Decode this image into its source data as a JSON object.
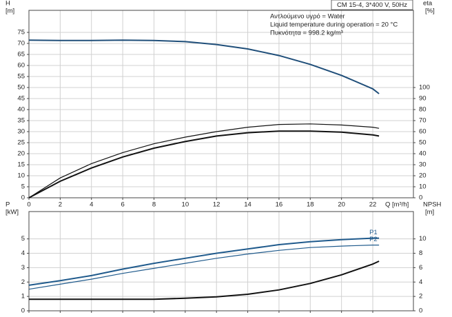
{
  "chart_data": [
    {
      "type": "line",
      "title": "CM 15-4, 3*400 V, 50Hz",
      "annotations": [
        "Αντλούμενο υγρό = Water",
        "Liquid temperature during operation = 20 °C",
        "Πυκνότητα = 998.2 kg/m³"
      ],
      "ylabel": "H",
      "ylabel_unit": "[m]",
      "y2label": "eta",
      "y2label_unit": "[%]",
      "xlabel": "Q [m³/h]",
      "x": [
        0,
        2,
        4,
        6,
        8,
        10,
        12,
        14,
        16,
        18,
        20,
        22,
        22.4
      ],
      "xlim": [
        0,
        24.6
      ],
      "xticks": [
        0,
        2,
        4,
        6,
        8,
        10,
        12,
        14,
        16,
        18,
        20,
        22
      ],
      "show_xtick_labels": true,
      "ylim": [
        0,
        85
      ],
      "yticks": [
        0,
        5,
        10,
        15,
        20,
        25,
        30,
        35,
        40,
        45,
        50,
        55,
        60,
        65,
        70,
        75
      ],
      "y2lim": [
        0,
        170
      ],
      "y2ticks": [
        0,
        10,
        20,
        30,
        40,
        50,
        60,
        70,
        80,
        90,
        100
      ],
      "grid": true,
      "series": [
        {
          "color": "#1f4e79",
          "line_width": 2,
          "values": [
            71.5,
            71.3,
            71.3,
            71.5,
            71.3,
            70.8,
            69.5,
            67.5,
            64.5,
            60.5,
            55.5,
            49.4,
            47.2
          ]
        },
        {
          "color": "#111111",
          "line_width": 1.2,
          "axis": "y2",
          "values": [
            0,
            18,
            31,
            41,
            49,
            55,
            60,
            64,
            66.5,
            67,
            66,
            64,
            63
          ]
        },
        {
          "color": "#111111",
          "line_width": 2,
          "axis": "y2",
          "values": [
            0,
            15,
            27,
            37,
            45,
            51,
            56,
            59,
            60.5,
            60.5,
            59.5,
            57,
            56
          ]
        }
      ]
    },
    {
      "type": "line",
      "ylabel": "P",
      "ylabel_unit": "[kW]",
      "y2label": "NPSH",
      "y2label_unit": "[m]",
      "x": [
        0,
        2,
        4,
        6,
        8,
        10,
        12,
        14,
        16,
        18,
        20,
        22,
        22.4
      ],
      "xlim": [
        0,
        24.6
      ],
      "xticks": [
        0,
        2,
        4,
        6,
        8,
        10,
        12,
        14,
        16,
        18,
        20,
        22
      ],
      "show_xtick_labels": false,
      "ylim": [
        0,
        6.9
      ],
      "yticks": [
        0,
        1,
        2,
        3,
        4,
        5
      ],
      "y2lim": [
        0,
        13.8
      ],
      "y2ticks": [
        0,
        2,
        4,
        6,
        8,
        10
      ],
      "grid": true,
      "series": [
        {
          "name": "P1",
          "color": "#1f5a8c",
          "line_width": 2,
          "values": [
            1.78,
            2.1,
            2.45,
            2.9,
            3.3,
            3.65,
            4.0,
            4.3,
            4.6,
            4.8,
            4.95,
            5.05,
            5.05
          ]
        },
        {
          "name": "P2",
          "color": "#1f5a8c",
          "line_width": 1.2,
          "values": [
            1.5,
            1.85,
            2.2,
            2.6,
            2.95,
            3.3,
            3.65,
            3.95,
            4.2,
            4.4,
            4.5,
            4.57,
            4.57
          ]
        },
        {
          "color": "#111111",
          "line_width": 2,
          "axis": "y2",
          "values": [
            1.6,
            1.6,
            1.6,
            1.6,
            1.6,
            1.75,
            1.95,
            2.3,
            2.9,
            3.8,
            5.0,
            6.5,
            6.9
          ]
        }
      ]
    }
  ]
}
